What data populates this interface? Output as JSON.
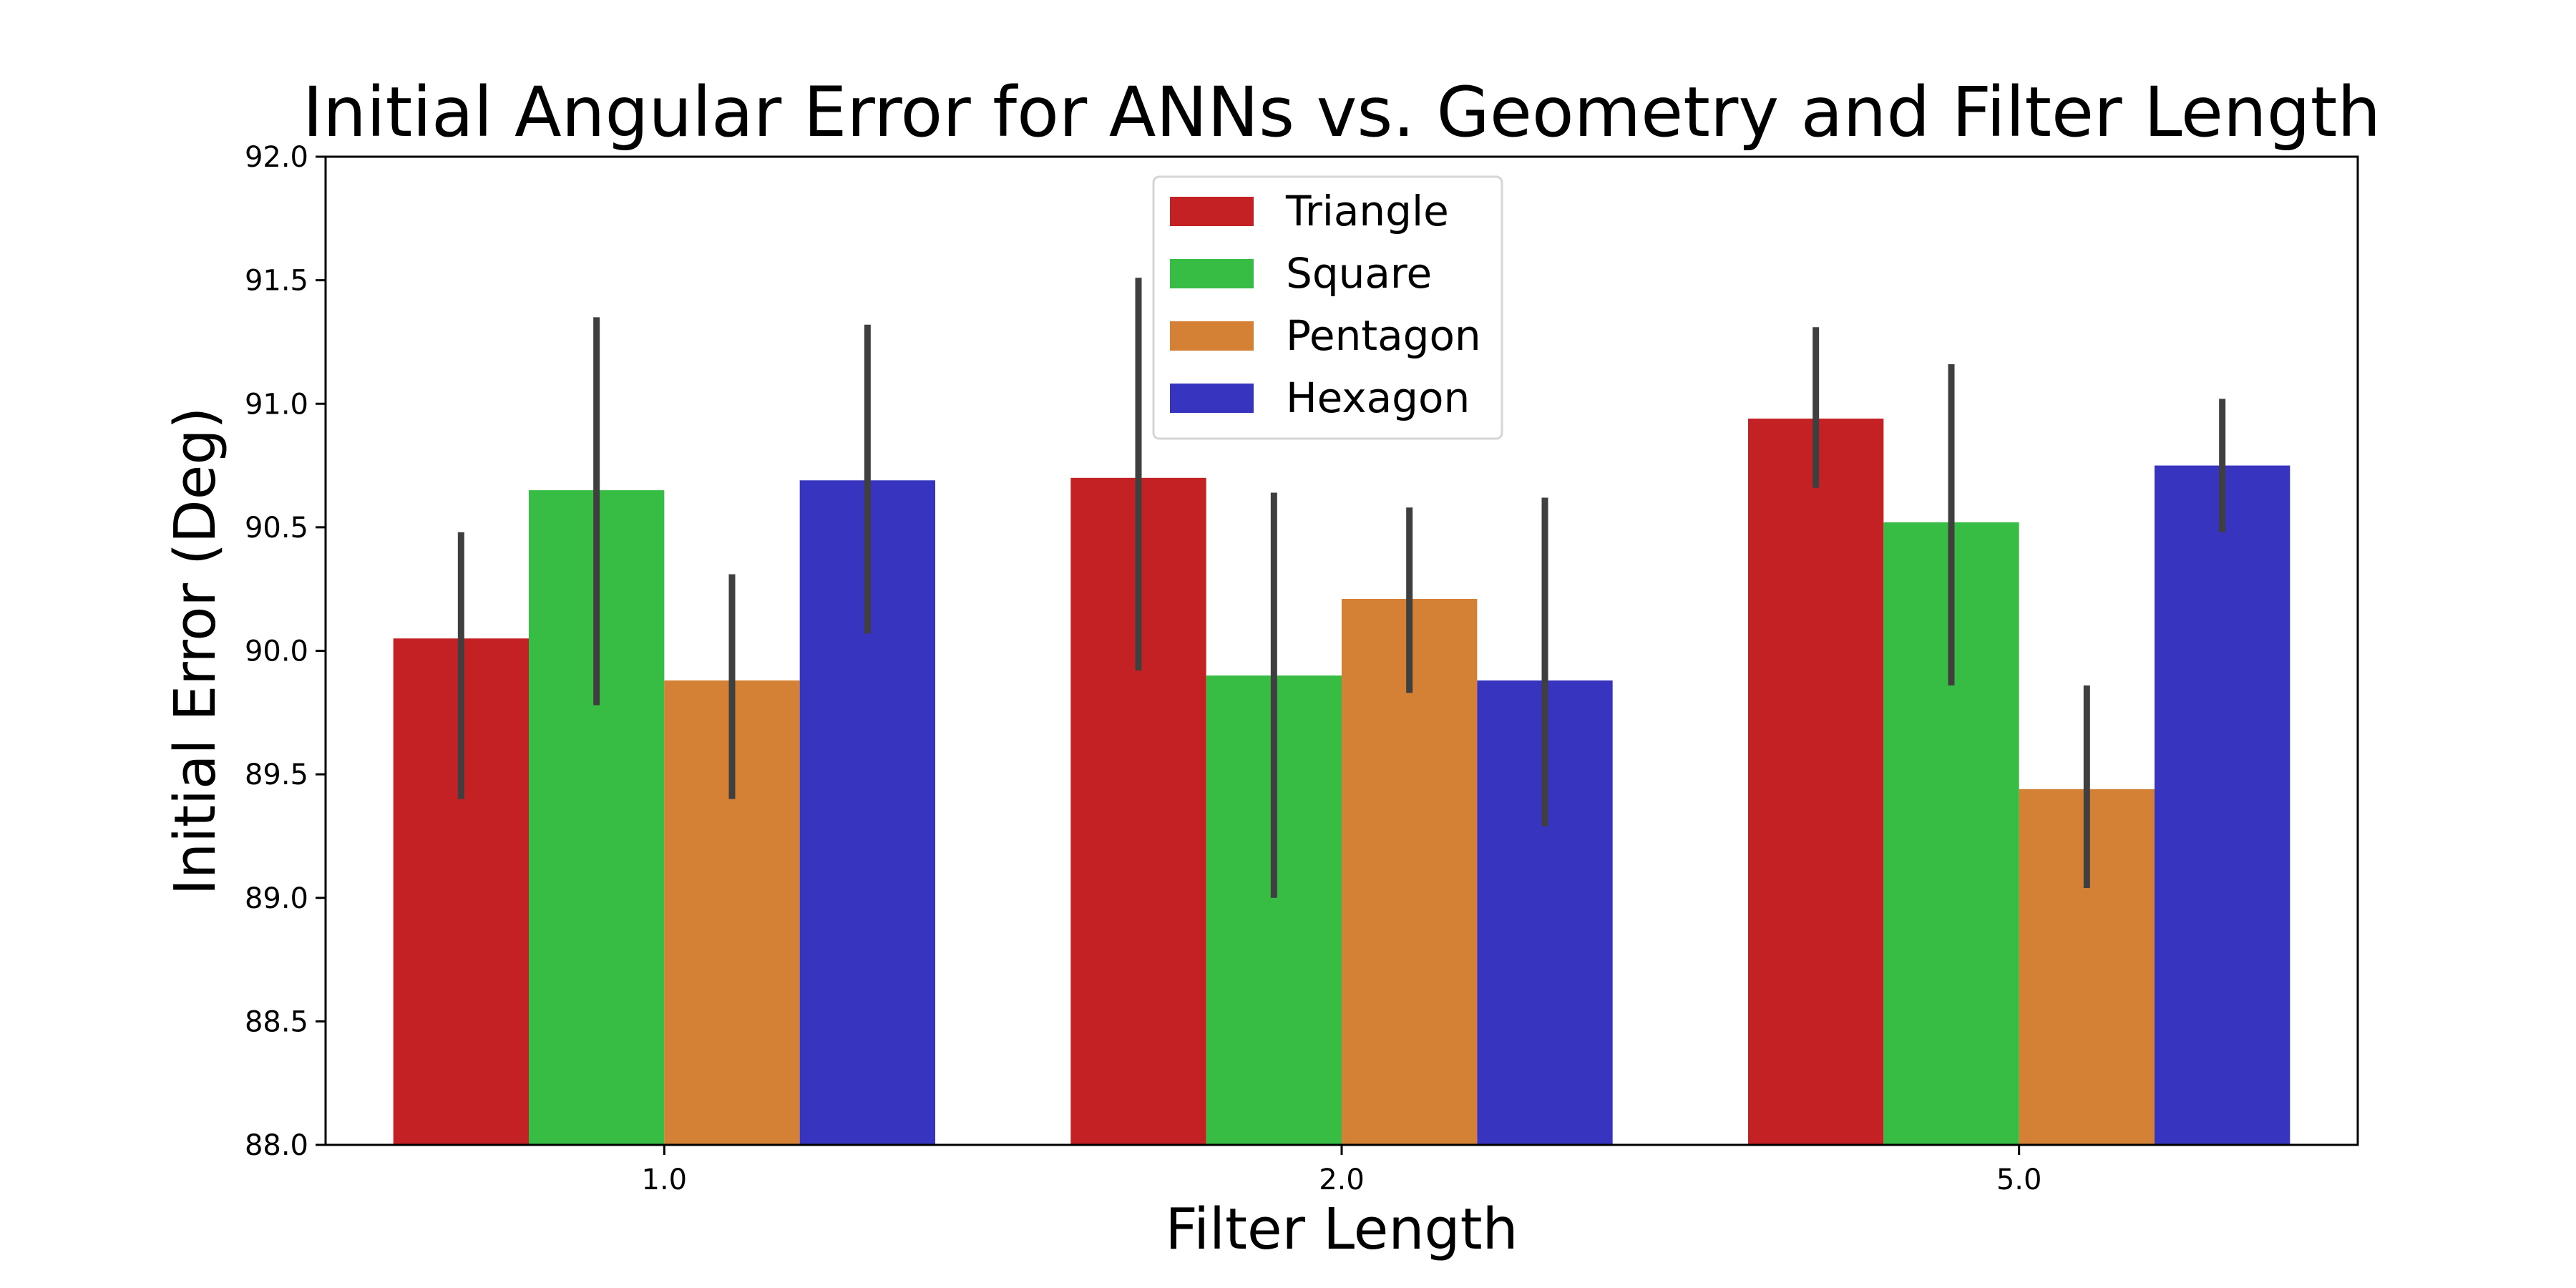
{
  "chart_data": {
    "type": "bar",
    "title": "Initial Angular Error for ANNs vs. Geometry and Filter Length",
    "xlabel": "Filter Length",
    "ylabel": "Initial Error (Deg)",
    "categories": [
      "1.0",
      "2.0",
      "5.0"
    ],
    "ylim": [
      88.0,
      92.0
    ],
    "yticks": [
      "88.0",
      "88.5",
      "89.0",
      "89.5",
      "90.0",
      "90.5",
      "91.0",
      "91.5",
      "92.0"
    ],
    "grid": false,
    "legend_position": "top-center",
    "series": [
      {
        "name": "Triangle",
        "color": "#c42124",
        "values": [
          90.05,
          90.7,
          90.94
        ],
        "err_low": [
          89.4,
          89.92,
          90.66
        ],
        "err_high": [
          90.48,
          91.51,
          91.31
        ]
      },
      {
        "name": "Square",
        "color": "#37bd43",
        "values": [
          90.65,
          89.9,
          90.52
        ],
        "err_low": [
          89.78,
          89.0,
          89.86
        ],
        "err_high": [
          91.35,
          90.64,
          91.16
        ]
      },
      {
        "name": "Pentagon",
        "color": "#d58135",
        "values": [
          89.88,
          90.21,
          89.44
        ],
        "err_low": [
          89.4,
          89.83,
          89.04
        ],
        "err_high": [
          90.31,
          90.58,
          89.86
        ]
      },
      {
        "name": "Hexagon",
        "color": "#3734bf",
        "values": [
          90.69,
          89.88,
          90.75
        ],
        "err_low": [
          90.07,
          89.29,
          90.48
        ],
        "err_high": [
          91.32,
          90.62,
          91.02
        ]
      }
    ]
  }
}
